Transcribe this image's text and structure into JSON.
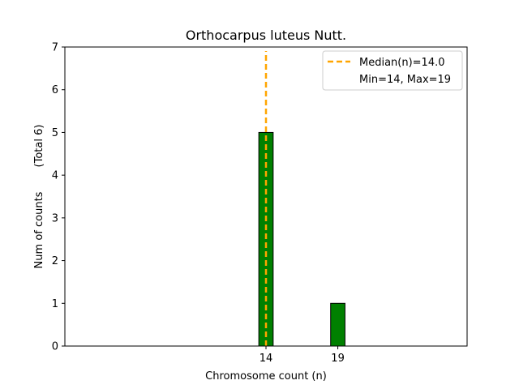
{
  "chart_data": {
    "type": "bar",
    "title": "Orthocarpus luteus Nutt.",
    "xlabel": "Chromosome count (n)",
    "ylabel": "Num of counts",
    "ylabel_secondary": "(Total 6)",
    "xlim": [
      0,
      28
    ],
    "ylim": [
      0,
      7
    ],
    "x_ticks": [
      14,
      19
    ],
    "y_ticks": [
      0,
      1,
      2,
      3,
      4,
      5,
      6,
      7
    ],
    "bar_width": 1,
    "bars": [
      {
        "x": 14,
        "value": 5
      },
      {
        "x": 19,
        "value": 1
      }
    ],
    "bar_color": "#008000",
    "median": {
      "value": 14.0,
      "color": "#ffa500"
    },
    "baseline_extent": [
      14,
      23
    ],
    "legend": {
      "placement": "top-right",
      "entries": [
        "Median(n)=14.0",
        "Min=14, Max=19"
      ]
    },
    "grid": false
  }
}
